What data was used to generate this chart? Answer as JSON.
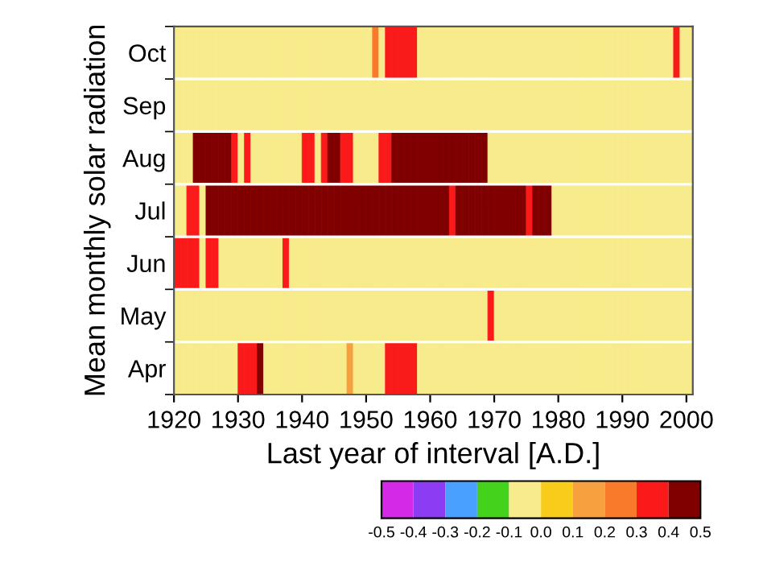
{
  "chart_data": {
    "type": "heatmap",
    "xlabel": "Last year of interval [A.D.]",
    "ylabel": "Mean monthly solar radiation",
    "x": [
      1920.5,
      1921.5,
      1922.5,
      1923.5,
      1924.5,
      1925.5,
      1926.5,
      1927.5,
      1928.5,
      1929.5,
      1930.5,
      1931.5,
      1932.5,
      1933.5,
      1934.5,
      1935.5,
      1936.5,
      1937.5,
      1938.5,
      1939.5,
      1940.5,
      1941.5,
      1942.5,
      1943.5,
      1944.5,
      1945.5,
      1946.5,
      1947.5,
      1948.5,
      1949.5,
      1950.5,
      1951.5,
      1952.5,
      1953.5,
      1954.5,
      1955.5,
      1956.5,
      1957.5,
      1958.5,
      1959.5,
      1960.5,
      1961.5,
      1962.5,
      1963.5,
      1964.5,
      1965.5,
      1966.5,
      1967.5,
      1968.5,
      1969.5,
      1970.5,
      1971.5,
      1972.5,
      1973.5,
      1974.5,
      1975.5,
      1976.5,
      1977.5,
      1978.5,
      1979.5,
      1980.5,
      1981.5,
      1982.5,
      1983.5,
      1984.5,
      1985.5,
      1986.5,
      1987.5,
      1988.5,
      1989.5,
      1990.5,
      1991.5,
      1992.5,
      1993.5,
      1994.5,
      1995.5,
      1996.5,
      1997.5,
      1998.5,
      1999.5,
      2000.5
    ],
    "y_categories": [
      "Oct",
      "Sep",
      "Aug",
      "Jul",
      "Jun",
      "May",
      "Apr"
    ],
    "cells": [
      [
        -0.05,
        -0.05,
        -0.05,
        -0.05,
        -0.05,
        -0.05,
        -0.05,
        -0.05,
        -0.05,
        -0.05,
        -0.05,
        -0.05,
        -0.05,
        -0.05,
        -0.05,
        -0.05,
        -0.05,
        -0.05,
        -0.05,
        -0.05,
        -0.05,
        -0.05,
        -0.05,
        -0.05,
        -0.05,
        -0.05,
        -0.05,
        -0.05,
        -0.05,
        -0.05,
        -0.05,
        0.25,
        -0.05,
        0.35,
        0.35,
        0.35,
        0.35,
        0.35,
        -0.05,
        -0.05,
        -0.05,
        -0.05,
        -0.05,
        -0.05,
        -0.05,
        -0.05,
        -0.05,
        -0.05,
        -0.05,
        -0.05,
        -0.05,
        -0.05,
        -0.05,
        -0.05,
        -0.05,
        -0.05,
        -0.05,
        -0.05,
        -0.05,
        -0.05,
        -0.05,
        -0.05,
        -0.05,
        -0.05,
        -0.05,
        -0.05,
        -0.05,
        -0.05,
        -0.05,
        -0.05,
        -0.05,
        -0.05,
        -0.05,
        -0.05,
        -0.05,
        -0.05,
        -0.05,
        -0.05,
        0.35,
        -0.05,
        -0.05
      ],
      [
        -0.05,
        -0.05,
        -0.05,
        -0.05,
        -0.05,
        -0.05,
        -0.05,
        -0.05,
        -0.05,
        -0.05,
        -0.05,
        -0.05,
        -0.05,
        -0.05,
        -0.05,
        -0.05,
        -0.05,
        -0.05,
        -0.05,
        -0.05,
        -0.05,
        -0.05,
        -0.05,
        -0.05,
        -0.05,
        -0.05,
        -0.05,
        -0.05,
        -0.05,
        -0.05,
        -0.05,
        -0.05,
        -0.05,
        -0.05,
        -0.05,
        -0.05,
        -0.05,
        -0.05,
        -0.05,
        -0.05,
        -0.05,
        -0.05,
        -0.05,
        -0.05,
        -0.05,
        -0.05,
        -0.05,
        -0.05,
        -0.05,
        -0.05,
        -0.05,
        -0.05,
        -0.05,
        -0.05,
        -0.05,
        -0.05,
        -0.05,
        -0.05,
        -0.05,
        -0.05,
        -0.05,
        -0.05,
        -0.05,
        -0.05,
        -0.05,
        -0.05,
        -0.05,
        -0.05,
        -0.05,
        -0.05,
        -0.05,
        -0.05,
        -0.05,
        -0.05,
        -0.05,
        -0.05,
        -0.05,
        -0.05,
        -0.05,
        -0.05,
        -0.05
      ],
      [
        -0.05,
        -0.05,
        -0.05,
        0.45,
        0.45,
        0.45,
        0.45,
        0.45,
        0.45,
        0.35,
        -0.05,
        0.35,
        -0.05,
        -0.05,
        -0.05,
        -0.05,
        -0.05,
        -0.05,
        -0.05,
        -0.05,
        0.35,
        0.35,
        -0.05,
        0.35,
        0.45,
        0.45,
        0.35,
        0.35,
        -0.05,
        -0.05,
        -0.05,
        -0.05,
        0.35,
        0.35,
        0.45,
        0.45,
        0.45,
        0.45,
        0.45,
        0.45,
        0.45,
        0.45,
        0.45,
        0.45,
        0.45,
        0.45,
        0.45,
        0.45,
        0.45,
        -0.05,
        -0.05,
        -0.05,
        -0.05,
        -0.05,
        -0.05,
        -0.05,
        -0.05,
        -0.05,
        -0.05,
        -0.05,
        -0.05,
        -0.05,
        -0.05,
        -0.05,
        -0.05,
        -0.05,
        -0.05,
        -0.05,
        -0.05,
        -0.05,
        -0.05,
        -0.05,
        -0.05,
        -0.05,
        -0.05,
        -0.05,
        -0.05,
        -0.05,
        -0.05,
        -0.05,
        -0.05
      ],
      [
        -0.05,
        -0.05,
        0.35,
        0.35,
        -0.05,
        0.45,
        0.45,
        0.45,
        0.45,
        0.45,
        0.45,
        0.45,
        0.45,
        0.45,
        0.45,
        0.45,
        0.45,
        0.45,
        0.45,
        0.45,
        0.45,
        0.45,
        0.45,
        0.45,
        0.45,
        0.45,
        0.45,
        0.45,
        0.45,
        0.45,
        0.45,
        0.45,
        0.45,
        0.45,
        0.45,
        0.45,
        0.45,
        0.45,
        0.45,
        0.45,
        0.45,
        0.45,
        0.45,
        0.35,
        0.45,
        0.45,
        0.45,
        0.45,
        0.45,
        0.45,
        0.45,
        0.45,
        0.45,
        0.45,
        0.45,
        0.35,
        0.45,
        0.45,
        0.45,
        -0.05,
        -0.05,
        -0.05,
        -0.05,
        -0.05,
        -0.05,
        -0.05,
        -0.05,
        -0.05,
        -0.05,
        -0.05,
        -0.05,
        -0.05,
        -0.05,
        -0.05,
        -0.05,
        -0.05,
        -0.05,
        -0.05,
        -0.05,
        -0.05,
        -0.05
      ],
      [
        0.35,
        0.35,
        0.35,
        0.35,
        -0.05,
        0.35,
        0.35,
        -0.05,
        -0.05,
        -0.05,
        -0.05,
        -0.05,
        -0.05,
        -0.05,
        -0.05,
        -0.05,
        -0.05,
        0.35,
        -0.05,
        -0.05,
        -0.05,
        -0.05,
        -0.05,
        -0.05,
        -0.05,
        -0.05,
        -0.05,
        -0.05,
        -0.05,
        -0.05,
        -0.05,
        -0.05,
        -0.05,
        -0.05,
        -0.05,
        -0.05,
        -0.05,
        -0.05,
        -0.05,
        -0.05,
        -0.05,
        -0.05,
        -0.05,
        -0.05,
        -0.05,
        -0.05,
        -0.05,
        -0.05,
        -0.05,
        -0.05,
        -0.05,
        -0.05,
        -0.05,
        -0.05,
        -0.05,
        -0.05,
        -0.05,
        -0.05,
        -0.05,
        -0.05,
        -0.05,
        -0.05,
        -0.05,
        -0.05,
        -0.05,
        -0.05,
        -0.05,
        -0.05,
        -0.05,
        -0.05,
        -0.05,
        -0.05,
        -0.05,
        -0.05,
        -0.05,
        -0.05,
        -0.05,
        -0.05,
        -0.05,
        -0.05,
        -0.05
      ],
      [
        -0.05,
        -0.05,
        -0.05,
        -0.05,
        -0.05,
        -0.05,
        -0.05,
        -0.05,
        -0.05,
        -0.05,
        -0.05,
        -0.05,
        -0.05,
        -0.05,
        -0.05,
        -0.05,
        -0.05,
        -0.05,
        -0.05,
        -0.05,
        -0.05,
        -0.05,
        -0.05,
        -0.05,
        -0.05,
        -0.05,
        -0.05,
        -0.05,
        -0.05,
        -0.05,
        -0.05,
        -0.05,
        -0.05,
        -0.05,
        -0.05,
        -0.05,
        -0.05,
        -0.05,
        -0.05,
        -0.05,
        -0.05,
        -0.05,
        -0.05,
        -0.05,
        -0.05,
        -0.05,
        -0.05,
        -0.05,
        -0.05,
        0.35,
        -0.05,
        -0.05,
        -0.05,
        -0.05,
        -0.05,
        -0.05,
        -0.05,
        -0.05,
        -0.05,
        -0.05,
        -0.05,
        -0.05,
        -0.05,
        -0.05,
        -0.05,
        -0.05,
        -0.05,
        -0.05,
        -0.05,
        -0.05,
        -0.05,
        -0.05,
        -0.05,
        -0.05,
        -0.05,
        -0.05,
        -0.05,
        -0.05,
        -0.05,
        -0.05,
        -0.05
      ],
      [
        -0.05,
        -0.05,
        -0.05,
        -0.05,
        -0.05,
        -0.05,
        -0.05,
        -0.05,
        -0.05,
        -0.05,
        0.35,
        0.35,
        0.35,
        0.45,
        -0.05,
        -0.05,
        -0.05,
        -0.05,
        -0.05,
        -0.05,
        -0.05,
        -0.05,
        -0.05,
        -0.05,
        -0.05,
        -0.05,
        -0.05,
        0.15,
        -0.05,
        -0.05,
        -0.05,
        -0.05,
        -0.05,
        0.35,
        0.35,
        0.35,
        0.35,
        0.35,
        -0.05,
        -0.05,
        -0.05,
        -0.05,
        -0.05,
        -0.05,
        -0.05,
        -0.05,
        -0.05,
        -0.05,
        -0.05,
        -0.05,
        -0.05,
        -0.05,
        -0.05,
        -0.05,
        -0.05,
        -0.05,
        -0.05,
        -0.05,
        -0.05,
        -0.05,
        -0.05,
        -0.05,
        -0.05,
        -0.05,
        -0.05,
        -0.05,
        -0.05,
        -0.05,
        -0.05,
        -0.05,
        -0.05,
        -0.05,
        -0.05,
        -0.05,
        -0.05,
        -0.05,
        -0.05,
        -0.05,
        -0.05,
        -0.05,
        -0.05
      ]
    ],
    "colors": [
      "#d42ae8",
      "#8c3cf2",
      "#4aa0ff",
      "#44d21c",
      "#f7eb8c",
      "#f9cc1c",
      "#f7a040",
      "#f97a2a",
      "#fb1a1a",
      "#800000"
    ],
    "clim": [
      -0.5,
      0.5
    ],
    "cticks": [
      {
        "value": -0.5,
        "label": "-0.5"
      },
      {
        "value": -0.4,
        "label": "-0.4"
      },
      {
        "value": -0.3,
        "label": "-0.3"
      },
      {
        "value": -0.2,
        "label": "-0.2"
      },
      {
        "value": -0.1,
        "label": "-0.1"
      },
      {
        "value": 0.0,
        "label": "0.0"
      },
      0.1,
      0.2,
      0.3,
      0.4,
      0.5
    ],
    "xlim": [
      1920,
      2001
    ],
    "xticks": [
      1920,
      1930,
      1940,
      1950,
      1960,
      1970,
      1980,
      1990,
      2000
    ],
    "grid": false
  }
}
